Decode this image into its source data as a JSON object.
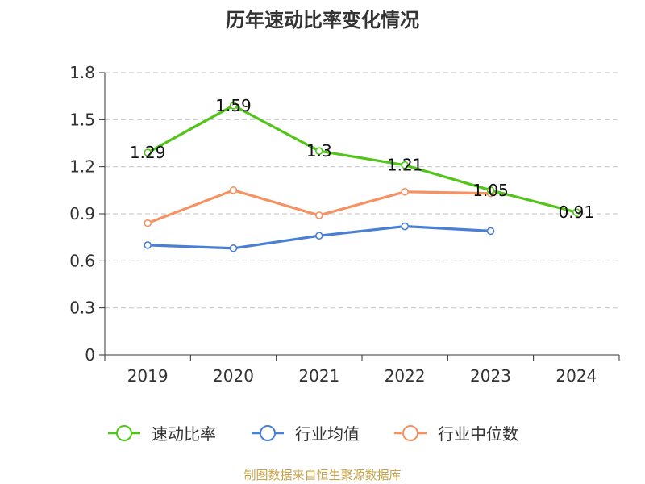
{
  "chart_data": {
    "type": "line",
    "title": "历年速动比率变化情况",
    "categories": [
      "2019",
      "2020",
      "2021",
      "2022",
      "2023",
      "2024"
    ],
    "ylim": [
      0,
      1.8
    ],
    "yticks": [
      "0",
      "0.3",
      "0.6",
      "0.9",
      "1.2",
      "1.5",
      "1.8"
    ],
    "grid": true,
    "legend_position": "bottom",
    "series": [
      {
        "name": "速动比率",
        "color": "#52c41a",
        "values": [
          1.29,
          1.59,
          1.3,
          1.21,
          1.05,
          0.91
        ],
        "labels": [
          "1.29",
          "1.59",
          "1.3",
          "1.21",
          "1.05",
          "0.91"
        ]
      },
      {
        "name": "行业均值",
        "color": "#4a7fd4",
        "values": [
          0.7,
          0.68,
          0.76,
          0.82,
          0.79,
          null
        ]
      },
      {
        "name": "行业中位数",
        "color": "#f59162",
        "values": [
          0.84,
          1.05,
          0.89,
          1.04,
          1.03,
          null
        ]
      }
    ]
  },
  "footer": {
    "source": "制图数据来自恒生聚源数据库",
    "color": "#c8a24a"
  }
}
